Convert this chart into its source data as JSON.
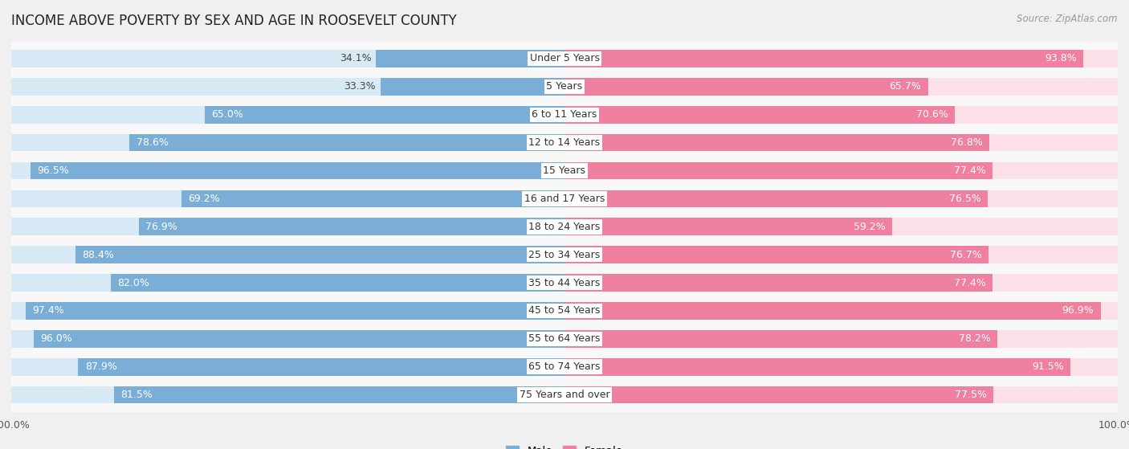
{
  "title": "INCOME ABOVE POVERTY BY SEX AND AGE IN ROOSEVELT COUNTY",
  "source": "Source: ZipAtlas.com",
  "categories": [
    "Under 5 Years",
    "5 Years",
    "6 to 11 Years",
    "12 to 14 Years",
    "15 Years",
    "16 and 17 Years",
    "18 to 24 Years",
    "25 to 34 Years",
    "35 to 44 Years",
    "45 to 54 Years",
    "55 to 64 Years",
    "65 to 74 Years",
    "75 Years and over"
  ],
  "male_values": [
    34.1,
    33.3,
    65.0,
    78.6,
    96.5,
    69.2,
    76.9,
    88.4,
    82.0,
    97.4,
    96.0,
    87.9,
    81.5
  ],
  "female_values": [
    93.8,
    65.7,
    70.6,
    76.8,
    77.4,
    76.5,
    59.2,
    76.7,
    77.4,
    96.9,
    78.2,
    91.5,
    77.5
  ],
  "male_color": "#7aaed6",
  "female_color": "#f080a0",
  "male_bg_color": "#d8eaf5",
  "female_bg_color": "#fce0e8",
  "background_color": "#f0f0f0",
  "bar_background": "#f8f8f8",
  "title_fontsize": 12,
  "label_fontsize": 9,
  "source_fontsize": 8.5,
  "max_val": 100.0,
  "inside_label_threshold": 45
}
